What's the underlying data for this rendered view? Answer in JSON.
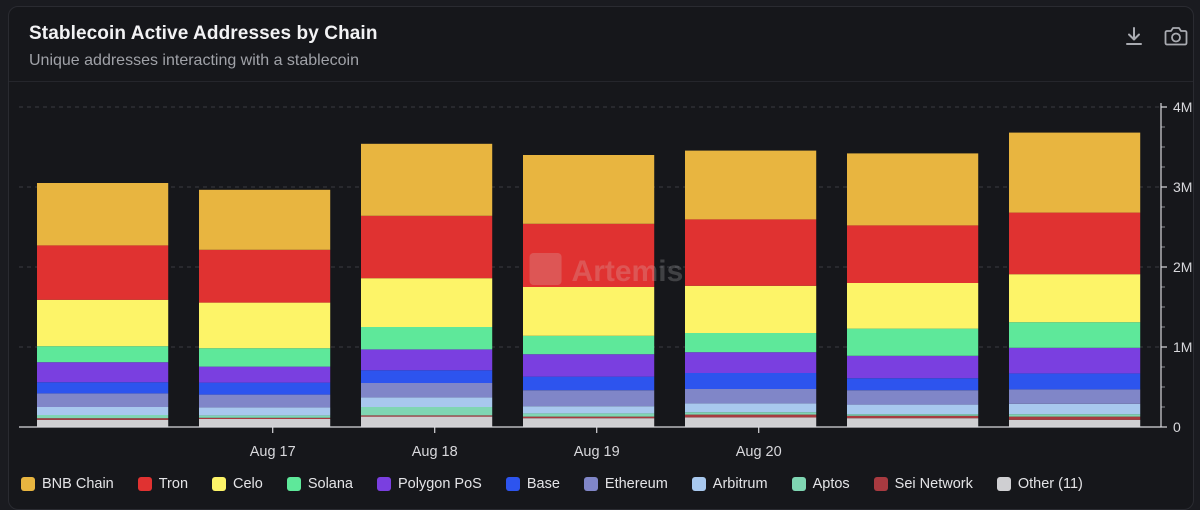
{
  "header": {
    "title": "Stablecoin Active Addresses by Chain",
    "subtitle": "Unique addresses interacting with a stablecoin"
  },
  "toolbar": {
    "download_icon": "download-icon",
    "screenshot_icon": "camera-icon"
  },
  "watermark": "Artemis",
  "chart_data": {
    "type": "bar",
    "stacked": true,
    "title": "Stablecoin Active Addresses by Chain",
    "subtitle": "Unique addresses interacting with a stablecoin",
    "x_tick_labels": [
      "Aug 17",
      "Aug 18",
      "Aug 19",
      "Aug 20"
    ],
    "x_tick_bar_index": [
      1.55,
      2.55,
      3.55,
      4.55
    ],
    "bar_count": 7,
    "y_ticks": [
      0,
      1000000,
      2000000,
      3000000,
      4000000
    ],
    "y_tick_labels": [
      "0",
      "1M",
      "2M",
      "3M",
      "4M"
    ],
    "ylim": [
      0,
      4000000
    ],
    "y_axis_side": "right",
    "grid": true,
    "legend_position": "bottom",
    "series": [
      {
        "name": "Other (11)",
        "color": "#cfcfd2",
        "values": [
          90000,
          100000,
          130000,
          110000,
          120000,
          110000,
          90000
        ]
      },
      {
        "name": "Sei Network",
        "color": "#a83a40",
        "values": [
          20000,
          15000,
          15000,
          20000,
          35000,
          30000,
          40000
        ]
      },
      {
        "name": "Aptos",
        "color": "#7fd6b3",
        "values": [
          40000,
          30000,
          105000,
          40000,
          30000,
          20000,
          30000
        ]
      },
      {
        "name": "Arbitrum",
        "color": "#a8c8ee",
        "values": [
          100000,
          100000,
          120000,
          90000,
          110000,
          120000,
          130000
        ]
      },
      {
        "name": "Ethereum",
        "color": "#8086c8",
        "values": [
          170000,
          160000,
          180000,
          200000,
          180000,
          180000,
          180000
        ]
      },
      {
        "name": "Base",
        "color": "#2d54ee",
        "values": [
          140000,
          150000,
          160000,
          170000,
          200000,
          150000,
          200000
        ]
      },
      {
        "name": "Polygon PoS",
        "color": "#7a3fe0",
        "values": [
          250000,
          200000,
          260000,
          280000,
          260000,
          280000,
          320000
        ]
      },
      {
        "name": "Solana",
        "color": "#5ee89a",
        "values": [
          200000,
          230000,
          280000,
          230000,
          240000,
          340000,
          320000
        ]
      },
      {
        "name": "Celo",
        "color": "#fdf468",
        "values": [
          580000,
          570000,
          610000,
          610000,
          590000,
          570000,
          600000
        ]
      },
      {
        "name": "Tron",
        "color": "#e03231",
        "values": [
          680000,
          660000,
          780000,
          790000,
          830000,
          720000,
          770000
        ]
      },
      {
        "name": "BNB Chain",
        "color": "#e8b540",
        "values": [
          780000,
          750000,
          900000,
          860000,
          860000,
          900000,
          1000000
        ]
      }
    ],
    "legend_order": [
      "BNB Chain",
      "Tron",
      "Celo",
      "Solana",
      "Polygon PoS",
      "Base",
      "Ethereum",
      "Arbitrum",
      "Aptos",
      "Sei Network",
      "Other (11)"
    ]
  }
}
